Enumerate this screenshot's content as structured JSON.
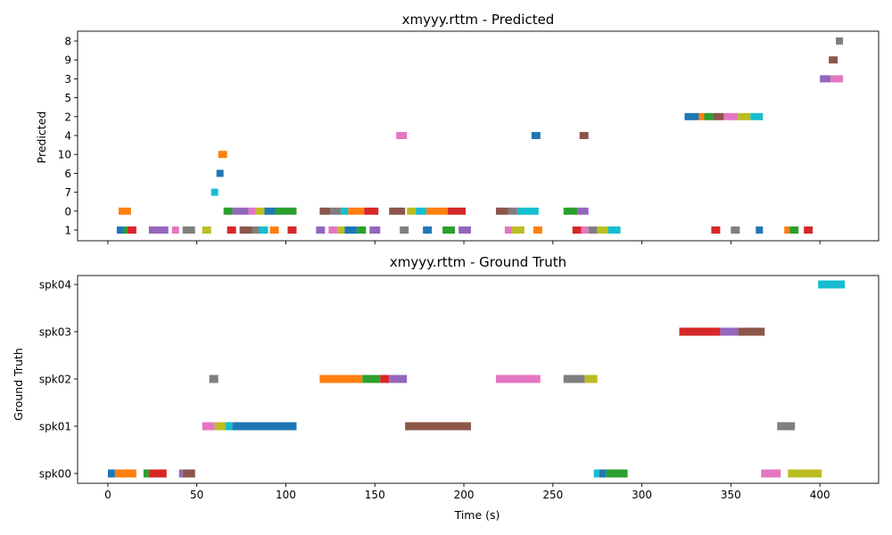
{
  "chart_data": [
    {
      "type": "timeline",
      "title": "xmyyy.rttm - Predicted",
      "ylabel": "Predicted",
      "xlabel": "",
      "xlim": [
        -17,
        433
      ],
      "x_ticks": [
        0,
        50,
        100,
        150,
        200,
        250,
        300,
        350,
        400
      ],
      "x_tick_labels_shown": false,
      "categories": [
        "1",
        "0",
        "7",
        "6",
        "10",
        "4",
        "2",
        "5",
        "3",
        "9",
        "8"
      ],
      "segments": [
        {
          "row": "1",
          "start": 5,
          "end": 9,
          "color": "#1f77b4"
        },
        {
          "row": "1",
          "start": 9,
          "end": 11,
          "color": "#2ca02c"
        },
        {
          "row": "1",
          "start": 11,
          "end": 16,
          "color": "#d62728"
        },
        {
          "row": "1",
          "start": 23,
          "end": 34,
          "color": "#9467bd"
        },
        {
          "row": "1",
          "start": 36,
          "end": 40,
          "color": "#e377c2"
        },
        {
          "row": "1",
          "start": 42,
          "end": 49,
          "color": "#7f7f7f"
        },
        {
          "row": "1",
          "start": 53,
          "end": 58,
          "color": "#bcbd22"
        },
        {
          "row": "1",
          "start": 67,
          "end": 72,
          "color": "#d62728"
        },
        {
          "row": "1",
          "start": 74,
          "end": 81,
          "color": "#8c564b"
        },
        {
          "row": "1",
          "start": 81,
          "end": 85,
          "color": "#7f7f7f"
        },
        {
          "row": "1",
          "start": 85,
          "end": 90,
          "color": "#17becf"
        },
        {
          "row": "1",
          "start": 91,
          "end": 96,
          "color": "#ff7f0e"
        },
        {
          "row": "1",
          "start": 101,
          "end": 106,
          "color": "#d62728"
        },
        {
          "row": "1",
          "start": 117,
          "end": 122,
          "color": "#9467bd"
        },
        {
          "row": "1",
          "start": 124,
          "end": 129,
          "color": "#e377c2"
        },
        {
          "row": "1",
          "start": 129,
          "end": 133,
          "color": "#bcbd22"
        },
        {
          "row": "1",
          "start": 133,
          "end": 140,
          "color": "#1f77b4"
        },
        {
          "row": "1",
          "start": 140,
          "end": 145,
          "color": "#2ca02c"
        },
        {
          "row": "1",
          "start": 147,
          "end": 153,
          "color": "#9467bd"
        },
        {
          "row": "1",
          "start": 164,
          "end": 169,
          "color": "#7f7f7f"
        },
        {
          "row": "1",
          "start": 177,
          "end": 182,
          "color": "#1f77b4"
        },
        {
          "row": "1",
          "start": 188,
          "end": 195,
          "color": "#2ca02c"
        },
        {
          "row": "1",
          "start": 197,
          "end": 204,
          "color": "#9467bd"
        },
        {
          "row": "1",
          "start": 223,
          "end": 227,
          "color": "#e377c2"
        },
        {
          "row": "1",
          "start": 227,
          "end": 234,
          "color": "#bcbd22"
        },
        {
          "row": "1",
          "start": 239,
          "end": 244,
          "color": "#ff7f0e"
        },
        {
          "row": "1",
          "start": 261,
          "end": 266,
          "color": "#d62728"
        },
        {
          "row": "1",
          "start": 266,
          "end": 270,
          "color": "#e377c2"
        },
        {
          "row": "1",
          "start": 270,
          "end": 275,
          "color": "#7f7f7f"
        },
        {
          "row": "1",
          "start": 275,
          "end": 281,
          "color": "#bcbd22"
        },
        {
          "row": "1",
          "start": 281,
          "end": 288,
          "color": "#17becf"
        },
        {
          "row": "1",
          "start": 339,
          "end": 344,
          "color": "#d62728"
        },
        {
          "row": "1",
          "start": 350,
          "end": 355,
          "color": "#7f7f7f"
        },
        {
          "row": "1",
          "start": 364,
          "end": 368,
          "color": "#1f77b4"
        },
        {
          "row": "1",
          "start": 380,
          "end": 383,
          "color": "#ff7f0e"
        },
        {
          "row": "1",
          "start": 383,
          "end": 388,
          "color": "#2ca02c"
        },
        {
          "row": "1",
          "start": 391,
          "end": 396,
          "color": "#d62728"
        },
        {
          "row": "0",
          "start": 6,
          "end": 13,
          "color": "#ff7f0e"
        },
        {
          "row": "0",
          "start": 65,
          "end": 70,
          "color": "#2ca02c"
        },
        {
          "row": "0",
          "start": 70,
          "end": 79,
          "color": "#9467bd"
        },
        {
          "row": "0",
          "start": 79,
          "end": 83,
          "color": "#e377c2"
        },
        {
          "row": "0",
          "start": 83,
          "end": 88,
          "color": "#bcbd22"
        },
        {
          "row": "0",
          "start": 88,
          "end": 94,
          "color": "#1f77b4"
        },
        {
          "row": "0",
          "start": 94,
          "end": 106,
          "color": "#2ca02c"
        },
        {
          "row": "0",
          "start": 119,
          "end": 125,
          "color": "#8c564b"
        },
        {
          "row": "0",
          "start": 125,
          "end": 131,
          "color": "#7f7f7f"
        },
        {
          "row": "0",
          "start": 131,
          "end": 135,
          "color": "#17becf"
        },
        {
          "row": "0",
          "start": 135,
          "end": 144,
          "color": "#ff7f0e"
        },
        {
          "row": "0",
          "start": 144,
          "end": 152,
          "color": "#d62728"
        },
        {
          "row": "0",
          "start": 158,
          "end": 167,
          "color": "#8c564b"
        },
        {
          "row": "0",
          "start": 168,
          "end": 173,
          "color": "#bcbd22"
        },
        {
          "row": "0",
          "start": 173,
          "end": 179,
          "color": "#17becf"
        },
        {
          "row": "0",
          "start": 179,
          "end": 191,
          "color": "#ff7f0e"
        },
        {
          "row": "0",
          "start": 191,
          "end": 201,
          "color": "#d62728"
        },
        {
          "row": "0",
          "start": 218,
          "end": 225,
          "color": "#8c564b"
        },
        {
          "row": "0",
          "start": 225,
          "end": 230,
          "color": "#7f7f7f"
        },
        {
          "row": "0",
          "start": 230,
          "end": 242,
          "color": "#17becf"
        },
        {
          "row": "0",
          "start": 256,
          "end": 264,
          "color": "#2ca02c"
        },
        {
          "row": "0",
          "start": 264,
          "end": 270,
          "color": "#9467bd"
        },
        {
          "row": "7",
          "start": 58,
          "end": 62,
          "color": "#17becf"
        },
        {
          "row": "6",
          "start": 61,
          "end": 65,
          "color": "#1f77b4"
        },
        {
          "row": "10",
          "start": 62,
          "end": 67,
          "color": "#ff7f0e"
        },
        {
          "row": "4",
          "start": 162,
          "end": 168,
          "color": "#e377c2"
        },
        {
          "row": "4",
          "start": 238,
          "end": 243,
          "color": "#1f77b4"
        },
        {
          "row": "4",
          "start": 265,
          "end": 270,
          "color": "#8c564b"
        },
        {
          "row": "2",
          "start": 324,
          "end": 332,
          "color": "#1f77b4"
        },
        {
          "row": "2",
          "start": 332,
          "end": 335,
          "color": "#ff7f0e"
        },
        {
          "row": "2",
          "start": 335,
          "end": 340,
          "color": "#2ca02c"
        },
        {
          "row": "2",
          "start": 340,
          "end": 346,
          "color": "#8c564b"
        },
        {
          "row": "2",
          "start": 346,
          "end": 354,
          "color": "#e377c2"
        },
        {
          "row": "2",
          "start": 354,
          "end": 361,
          "color": "#bcbd22"
        },
        {
          "row": "2",
          "start": 361,
          "end": 368,
          "color": "#17becf"
        },
        {
          "row": "3",
          "start": 400,
          "end": 406,
          "color": "#9467bd"
        },
        {
          "row": "3",
          "start": 406,
          "end": 413,
          "color": "#e377c2"
        },
        {
          "row": "9",
          "start": 405,
          "end": 410,
          "color": "#8c564b"
        },
        {
          "row": "8",
          "start": 409,
          "end": 413,
          "color": "#7f7f7f"
        }
      ]
    },
    {
      "type": "timeline",
      "title": "xmyyy.rttm - Ground Truth",
      "ylabel": "Ground Truth",
      "xlabel": "Time (s)",
      "xlim": [
        -17,
        433
      ],
      "x_ticks": [
        0,
        50,
        100,
        150,
        200,
        250,
        300,
        350,
        400
      ],
      "x_tick_labels_shown": true,
      "categories": [
        "spk00",
        "spk01",
        "spk02",
        "spk03",
        "spk04"
      ],
      "segments": [
        {
          "row": "spk00",
          "start": 0,
          "end": 4,
          "color": "#1f77b4"
        },
        {
          "row": "spk00",
          "start": 4,
          "end": 16,
          "color": "#ff7f0e"
        },
        {
          "row": "spk00",
          "start": 20,
          "end": 23,
          "color": "#2ca02c"
        },
        {
          "row": "spk00",
          "start": 23,
          "end": 33,
          "color": "#d62728"
        },
        {
          "row": "spk00",
          "start": 40,
          "end": 42,
          "color": "#9467bd"
        },
        {
          "row": "spk00",
          "start": 42,
          "end": 49,
          "color": "#8c564b"
        },
        {
          "row": "spk00",
          "start": 273,
          "end": 276,
          "color": "#17becf"
        },
        {
          "row": "spk00",
          "start": 276,
          "end": 280,
          "color": "#1f77b4"
        },
        {
          "row": "spk00",
          "start": 280,
          "end": 292,
          "color": "#2ca02c"
        },
        {
          "row": "spk00",
          "start": 367,
          "end": 378,
          "color": "#e377c2"
        },
        {
          "row": "spk00",
          "start": 382,
          "end": 401,
          "color": "#bcbd22"
        },
        {
          "row": "spk01",
          "start": 53,
          "end": 60,
          "color": "#e377c2"
        },
        {
          "row": "spk01",
          "start": 60,
          "end": 66,
          "color": "#bcbd22"
        },
        {
          "row": "spk01",
          "start": 66,
          "end": 70,
          "color": "#17becf"
        },
        {
          "row": "spk01",
          "start": 70,
          "end": 106,
          "color": "#1f77b4"
        },
        {
          "row": "spk01",
          "start": 167,
          "end": 204,
          "color": "#8c564b"
        },
        {
          "row": "spk01",
          "start": 376,
          "end": 386,
          "color": "#7f7f7f"
        },
        {
          "row": "spk02",
          "start": 57,
          "end": 62,
          "color": "#7f7f7f"
        },
        {
          "row": "spk02",
          "start": 119,
          "end": 143,
          "color": "#ff7f0e"
        },
        {
          "row": "spk02",
          "start": 143,
          "end": 153,
          "color": "#2ca02c"
        },
        {
          "row": "spk02",
          "start": 153,
          "end": 158,
          "color": "#d62728"
        },
        {
          "row": "spk02",
          "start": 158,
          "end": 168,
          "color": "#9467bd"
        },
        {
          "row": "spk02",
          "start": 218,
          "end": 243,
          "color": "#e377c2"
        },
        {
          "row": "spk02",
          "start": 256,
          "end": 268,
          "color": "#7f7f7f"
        },
        {
          "row": "spk02",
          "start": 268,
          "end": 275,
          "color": "#bcbd22"
        },
        {
          "row": "spk03",
          "start": 321,
          "end": 344,
          "color": "#d62728"
        },
        {
          "row": "spk03",
          "start": 344,
          "end": 354,
          "color": "#9467bd"
        },
        {
          "row": "spk03",
          "start": 354,
          "end": 369,
          "color": "#8c564b"
        },
        {
          "row": "spk04",
          "start": 399,
          "end": 414,
          "color": "#17becf"
        }
      ]
    }
  ]
}
